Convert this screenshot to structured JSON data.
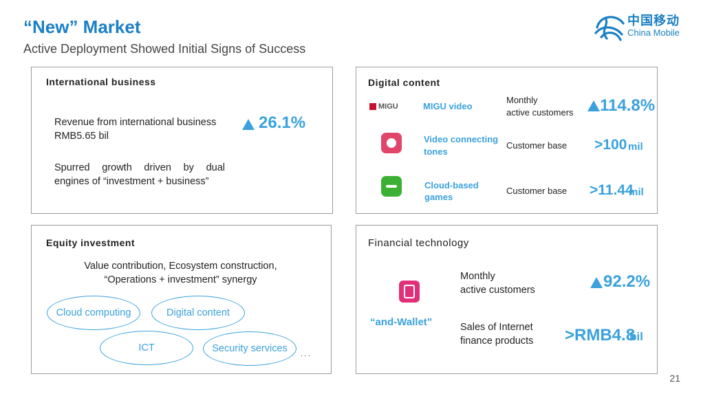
{
  "header": {
    "title": "“New” Market",
    "subtitle": "Active Deployment Showed Initial Signs of Success"
  },
  "logo": {
    "cn": "中国移动",
    "en": "China Mobile"
  },
  "international": {
    "title": "International business",
    "revenue_line1": "Revenue from international business",
    "revenue_line2": "RMB5.65 bil",
    "growth": "26.1%",
    "spurred_line1": "Spurred growth driven by dual",
    "spurred_line2": "engines of “investment + business”"
  },
  "digital": {
    "title": "Digital content",
    "rows": [
      {
        "app_logo": "MIGU",
        "name": "MIGU video",
        "metric_line1": "Monthly",
        "metric_line2": "active customers",
        "value": "114.8%",
        "unit": ""
      },
      {
        "app_logo": "MIGU",
        "name_line1": "Video connecting",
        "name_line2": "tones",
        "metric_line1": "Customer base",
        "value": ">100",
        "unit": "mil"
      },
      {
        "app_logo": "MIGU",
        "name_line1": "Cloud-based",
        "name_line2": "games",
        "metric_line1": "Customer base",
        "value": ">11.44",
        "unit": "mil"
      }
    ]
  },
  "equity": {
    "title": "Equity investment",
    "desc_line1": "Value contribution, Ecosystem construction,",
    "desc_line2": "“Operations + investment” synergy",
    "tags": [
      "Cloud computing",
      "Digital content",
      "ICT",
      "Security services"
    ],
    "ellipsis": ". . ."
  },
  "fintech": {
    "title": "Financial technology",
    "wallet_label": "“and-Wallet”",
    "metric1_line1": "Monthly",
    "metric1_line2": "active customers",
    "metric1_value": "92.2%",
    "metric2_line1": "Sales of Internet",
    "metric2_line2": "finance products",
    "metric2_value": ">RMB4.8",
    "metric2_unit": "bil"
  },
  "page_number": "21",
  "colors": {
    "accent": "#3aa1dd",
    "title": "#1a7fc4",
    "wallet_icon": "#e0307a",
    "games_icon": "#3cb034"
  }
}
